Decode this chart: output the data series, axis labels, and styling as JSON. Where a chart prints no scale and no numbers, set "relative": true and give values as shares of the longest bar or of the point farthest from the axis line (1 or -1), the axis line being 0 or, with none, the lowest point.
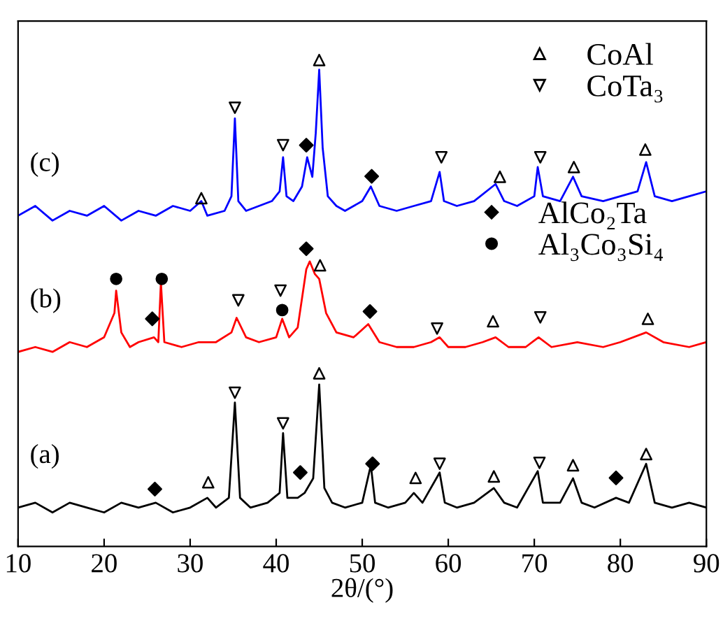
{
  "chart_data": {
    "type": "line",
    "relative": true,
    "xlabel": "2θ/(°)",
    "xlim": [
      10,
      90
    ],
    "xticks": [
      10,
      20,
      30,
      40,
      50,
      60,
      70,
      80,
      90
    ],
    "tick_labels": "x",
    "grid": false,
    "legend": "right",
    "series": [
      {
        "color": "#0000ff",
        "x": [
          10,
          12,
          14,
          16,
          18,
          20,
          22,
          24,
          26,
          28,
          30,
          31.3,
          32,
          34,
          34.8,
          35.2,
          35.6,
          36.5,
          38,
          39.5,
          40.4,
          40.8,
          41.2,
          42,
          43,
          43.6,
          44.2,
          44.6,
          45,
          45.4,
          46,
          47,
          48,
          50,
          51,
          52,
          54,
          56,
          58,
          59,
          59.5,
          61,
          63,
          65.5,
          66.5,
          68,
          70,
          70.4,
          71,
          73,
          74.5,
          75.5,
          78,
          80,
          82,
          83,
          84,
          86,
          88,
          90
        ],
        "values": [
          0.68,
          0.7,
          0.67,
          0.69,
          0.68,
          0.7,
          0.67,
          0.69,
          0.68,
          0.7,
          0.69,
          0.71,
          0.68,
          0.69,
          0.72,
          0.88,
          0.71,
          0.69,
          0.7,
          0.71,
          0.73,
          0.8,
          0.72,
          0.71,
          0.74,
          0.8,
          0.76,
          0.85,
          0.98,
          0.82,
          0.72,
          0.7,
          0.69,
          0.71,
          0.74,
          0.7,
          0.69,
          0.7,
          0.71,
          0.77,
          0.71,
          0.7,
          0.71,
          0.745,
          0.71,
          0.7,
          0.72,
          0.78,
          0.72,
          0.71,
          0.76,
          0.72,
          0.71,
          0.72,
          0.73,
          0.79,
          0.72,
          0.71,
          0.72,
          0.73
        ]
      },
      {
        "color": "#ff0000",
        "x": [
          10,
          12,
          14,
          16,
          18,
          20,
          21.2,
          21.4,
          22,
          23,
          24,
          25.8,
          26.3,
          26.6,
          27,
          29,
          31,
          33,
          34.8,
          35.4,
          36.5,
          38,
          40,
          40.7,
          41.5,
          42.5,
          43.5,
          43.9,
          44.5,
          45,
          45.8,
          47,
          49,
          50.7,
          52,
          54,
          56,
          58,
          59,
          60,
          62,
          64,
          65.5,
          67,
          69,
          70.5,
          72,
          75,
          78,
          80,
          83,
          85,
          88,
          90
        ],
        "values": [
          0.4,
          0.41,
          0.4,
          0.42,
          0.41,
          0.43,
          0.48,
          0.526,
          0.44,
          0.41,
          0.42,
          0.43,
          0.42,
          0.543,
          0.42,
          0.41,
          0.42,
          0.42,
          0.44,
          0.47,
          0.43,
          0.42,
          0.43,
          0.468,
          0.43,
          0.45,
          0.57,
          0.586,
          0.56,
          0.55,
          0.48,
          0.44,
          0.43,
          0.457,
          0.42,
          0.41,
          0.41,
          0.42,
          0.43,
          0.41,
          0.41,
          0.42,
          0.43,
          0.41,
          0.41,
          0.43,
          0.41,
          0.42,
          0.41,
          0.42,
          0.44,
          0.42,
          0.41,
          0.42
        ]
      },
      {
        "color": "#000000",
        "x": [
          10,
          12,
          14,
          16,
          18,
          20,
          22,
          24,
          26,
          28,
          30,
          32,
          33,
          34.5,
          35.2,
          35.8,
          37,
          39,
          40.4,
          40.8,
          41.3,
          42.5,
          43.3,
          44.3,
          45,
          45.6,
          46.5,
          48,
          50,
          51,
          51.5,
          53,
          55,
          56,
          57,
          59,
          59.6,
          61,
          63,
          65.3,
          66.5,
          68,
          70.4,
          71,
          73,
          74.5,
          75.5,
          77,
          79.5,
          81,
          83,
          84,
          86,
          88,
          90
        ],
        "values": [
          0.08,
          0.09,
          0.07,
          0.09,
          0.08,
          0.07,
          0.09,
          0.08,
          0.09,
          0.07,
          0.08,
          0.1,
          0.08,
          0.1,
          0.296,
          0.1,
          0.08,
          0.09,
          0.11,
          0.233,
          0.1,
          0.1,
          0.11,
          0.14,
          0.333,
          0.12,
          0.09,
          0.08,
          0.09,
          0.167,
          0.09,
          0.08,
          0.09,
          0.11,
          0.09,
          0.152,
          0.09,
          0.08,
          0.09,
          0.12,
          0.09,
          0.08,
          0.155,
          0.09,
          0.09,
          0.14,
          0.09,
          0.08,
          0.1,
          0.09,
          0.17,
          0.09,
          0.08,
          0.09,
          0.08
        ]
      },
      {
        "type": "scatter",
        "name": "CoAl",
        "color": "#000000",
        "marker": "triangle",
        "x": [
          31.3,
          45,
          66,
          74.6,
          82.9,
          45.1,
          65.2,
          83.2,
          32.1,
          45,
          56.2,
          65.3,
          74.5,
          83
        ],
        "values": [
          0.716,
          1.0,
          0.76,
          0.78,
          0.816,
          0.578,
          0.463,
          0.468,
          0.132,
          0.356,
          0.141,
          0.144,
          0.167,
          0.19
        ]
      },
      {
        "type": "scatter",
        "name": "CoTa₃",
        "color": "#000000",
        "marker": "triangle_down",
        "x": [
          35.2,
          40.8,
          59.2,
          70.7,
          35.6,
          40.5,
          58.7,
          70.7,
          35.2,
          40.8,
          59,
          70.6
        ],
        "values": [
          0.902,
          0.825,
          0.8,
          0.8,
          0.506,
          0.526,
          0.448,
          0.471,
          0.316,
          0.253,
          0.17,
          0.172
        ]
      },
      {
        "type": "scatter",
        "name": "AlCo₂Ta",
        "color": "#000000",
        "marker": "diamond",
        "x": [
          43.5,
          51.1,
          43.5,
          25.6,
          50.9,
          25.9,
          42.8,
          51.2,
          79.5
        ],
        "values": [
          0.825,
          0.761,
          0.612,
          0.468,
          0.483,
          0.118,
          0.152,
          0.17,
          0.141
        ]
      },
      {
        "type": "scatter",
        "name": "Al₃Co₃Si₄",
        "color": "#000000",
        "marker": "circle",
        "x": [
          21.4,
          26.7,
          40.7
        ],
        "values": [
          0.55,
          0.55,
          0.486
        ]
      }
    ],
    "annotations": [
      "(a)",
      "(b)",
      "(c)"
    ]
  }
}
